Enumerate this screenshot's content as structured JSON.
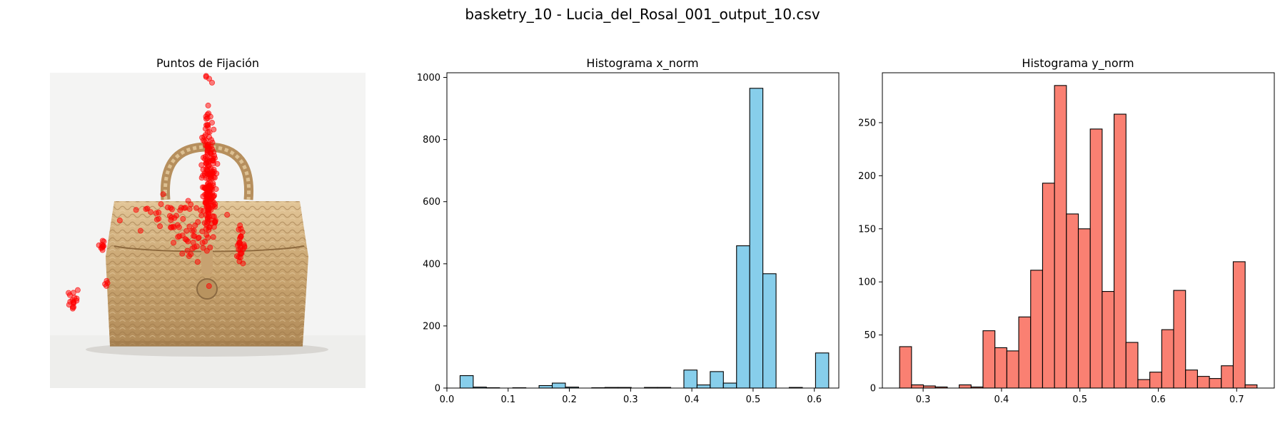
{
  "figure": {
    "title": "basketry_10 - Lucia_del_Rosal_001_output_10.csv"
  },
  "chart_data": [
    {
      "type": "scatter",
      "title": "Puntos de Fijación",
      "axis": "off",
      "background": "photo of a woven basketry handbag with handle and toggle button",
      "point_color": "#ff0000",
      "xlim": [
        0,
        1
      ],
      "ylim": [
        0,
        1
      ],
      "y_inverted": true,
      "clusters": [
        {
          "cx": 0.505,
          "cy": 0.34,
          "sx": 0.012,
          "sy": 0.09,
          "n": 140
        },
        {
          "cx": 0.5,
          "cy": 0.33,
          "sx": 0.005,
          "sy": 0.15,
          "n": 60
        },
        {
          "cx": 0.395,
          "cy": 0.46,
          "sx": 0.06,
          "sy": 0.035,
          "n": 45
        },
        {
          "cx": 0.45,
          "cy": 0.53,
          "sx": 0.02,
          "sy": 0.03,
          "n": 25
        },
        {
          "cx": 0.605,
          "cy": 0.55,
          "sx": 0.007,
          "sy": 0.025,
          "n": 28
        },
        {
          "cx": 0.165,
          "cy": 0.55,
          "sx": 0.006,
          "sy": 0.01,
          "n": 10
        },
        {
          "cx": 0.07,
          "cy": 0.72,
          "sx": 0.008,
          "sy": 0.012,
          "n": 16
        },
        {
          "cx": 0.18,
          "cy": 0.66,
          "sx": 0.01,
          "sy": 0.01,
          "n": 4
        }
      ]
    },
    {
      "type": "bar",
      "title": "Histograma x_norm",
      "bar_color": "#87ceeb",
      "edge_color": "#000000",
      "x_min": 0.0,
      "x_max": 0.62,
      "bin_width": 0.0215,
      "values": [
        0,
        40,
        3,
        1,
        0,
        1,
        0,
        8,
        16,
        3,
        0,
        1,
        2,
        2,
        0,
        2,
        2,
        0,
        58,
        10,
        53,
        16,
        458,
        965,
        368,
        0,
        2,
        0,
        113
      ],
      "xlim": [
        0.0,
        0.64
      ],
      "ylim": [
        0,
        1015
      ],
      "xticks": [
        0.0,
        0.1,
        0.2,
        0.3,
        0.4,
        0.5,
        0.6
      ],
      "yticks": [
        0,
        200,
        400,
        600,
        800,
        1000
      ],
      "xtick_labels": [
        "0.0",
        "0.1",
        "0.2",
        "0.3",
        "0.4",
        "0.5",
        "0.6"
      ],
      "ytick_labels": [
        "0",
        "200",
        "400",
        "600",
        "800",
        "1000"
      ]
    },
    {
      "type": "bar",
      "title": "Histograma y_norm",
      "bar_color": "#fa8072",
      "edge_color": "#000000",
      "x_min": 0.27,
      "x_max": 0.725,
      "bin_width": 0.0152,
      "values": [
        39,
        3,
        2,
        1,
        0,
        3,
        1,
        54,
        38,
        35,
        67,
        111,
        193,
        285,
        164,
        150,
        244,
        91,
        258,
        43,
        8,
        15,
        55,
        92,
        17,
        11,
        9,
        21,
        119,
        3
      ],
      "xlim": [
        0.248,
        0.748
      ],
      "ylim": [
        0,
        297
      ],
      "xticks": [
        0.3,
        0.4,
        0.5,
        0.6,
        0.7
      ],
      "yticks": [
        0,
        50,
        100,
        150,
        200,
        250
      ],
      "xtick_labels": [
        "0.3",
        "0.4",
        "0.5",
        "0.6",
        "0.7"
      ],
      "ytick_labels": [
        "0",
        "50",
        "100",
        "150",
        "200",
        "250"
      ]
    }
  ]
}
